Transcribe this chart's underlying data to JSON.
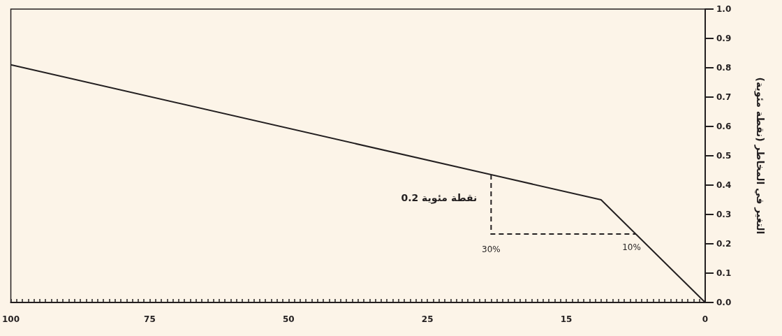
{
  "chart_data": {
    "type": "line",
    "ylabel": "التغير في المخاطر (نقطة مئوية)",
    "categories": [
      "100",
      null,
      null,
      null,
      null,
      null,
      null,
      null,
      null,
      null,
      null,
      null,
      null,
      null,
      null,
      null,
      null,
      null,
      null,
      null,
      null,
      null,
      null,
      null,
      "75",
      null,
      null,
      null,
      null,
      null,
      null,
      null,
      null,
      null,
      null,
      null,
      null,
      null,
      null,
      null,
      null,
      null,
      null,
      null,
      null,
      null,
      null,
      null,
      "50",
      null,
      null,
      null,
      null,
      null,
      null,
      null,
      null,
      null,
      null,
      null,
      null,
      null,
      null,
      null,
      null,
      null,
      null,
      null,
      null,
      null,
      null,
      null,
      "25",
      null,
      null,
      null,
      null,
      null,
      null,
      null,
      null,
      null,
      null,
      null,
      null,
      null,
      null,
      null,
      null,
      null,
      null,
      null,
      null,
      null,
      null,
      null,
      "15",
      null,
      null,
      null,
      null,
      null,
      null,
      null,
      null,
      null,
      null,
      null,
      null,
      null,
      null,
      null,
      null,
      null,
      null,
      null,
      null,
      null,
      null,
      null,
      "0"
    ],
    "ylim": [
      0,
      1
    ],
    "yticks": [
      {
        "value": 0,
        "label": "0.0"
      },
      {
        "value": 0.1,
        "label": "0.1"
      },
      {
        "value": 0.2,
        "label": "0.2"
      },
      {
        "value": 0.3,
        "label": "0.3"
      },
      {
        "value": 0.4,
        "label": "0.4"
      },
      {
        "value": 0.5,
        "label": "0.5"
      },
      {
        "value": 0.6,
        "label": "0.6"
      },
      {
        "value": 0.7,
        "label": "0.7"
      },
      {
        "value": 0.8,
        "label": "0.8"
      },
      {
        "value": 0.9,
        "label": "0.9"
      },
      {
        "value": 1,
        "label": "1.0"
      }
    ],
    "series": [
      {
        "color": "#231f20",
        "values": [
          0.81,
          null,
          null,
          null,
          null,
          null,
          null,
          null,
          null,
          null,
          null,
          null,
          null,
          null,
          null,
          null,
          null,
          null,
          null,
          null,
          null,
          null,
          null,
          null,
          null,
          null,
          null,
          null,
          null,
          null,
          null,
          null,
          null,
          null,
          null,
          null,
          null,
          null,
          null,
          null,
          null,
          null,
          null,
          null,
          null,
          null,
          null,
          null,
          null,
          null,
          null,
          null,
          null,
          null,
          null,
          null,
          null,
          null,
          null,
          null,
          null,
          null,
          null,
          null,
          null,
          null,
          null,
          null,
          null,
          null,
          null,
          null,
          null,
          null,
          null,
          null,
          null,
          null,
          null,
          null,
          null,
          null,
          null,
          null,
          null,
          null,
          null,
          null,
          null,
          null,
          null,
          null,
          null,
          null,
          null,
          null,
          null,
          null,
          null,
          null,
          null,
          null,
          0.35,
          null,
          null,
          null,
          null,
          null,
          null,
          null,
          null,
          null,
          null,
          null,
          null,
          null,
          null,
          null,
          null,
          null,
          0
        ]
      }
    ],
    "annotations": [
      "0.2 نقطة مئوية",
      "30%",
      {
        "text": "10%",
        "y": 0.24
      }
    ],
    "grid": false,
    "marker": "none",
    "line_style": "solid"
  }
}
